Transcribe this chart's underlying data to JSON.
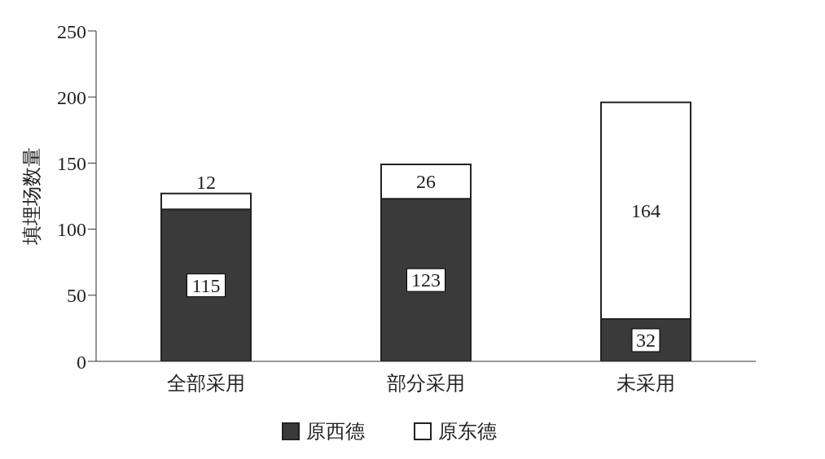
{
  "chart_data": {
    "type": "bar",
    "stacked": true,
    "ylabel": "填埋场数量",
    "categories": [
      "全部采用",
      "部分采用",
      "未采用"
    ],
    "series": [
      {
        "name": "原西德",
        "color": "#3a3a3a",
        "values": [
          115,
          123,
          32
        ]
      },
      {
        "name": "原东德",
        "color": "#ffffff",
        "values": [
          12,
          26,
          164
        ]
      }
    ],
    "ylim": [
      0,
      250
    ],
    "yticks": [
      0,
      50,
      100,
      150,
      200,
      250
    ],
    "data_labels": true,
    "legend": "bottom",
    "grid": false
  }
}
